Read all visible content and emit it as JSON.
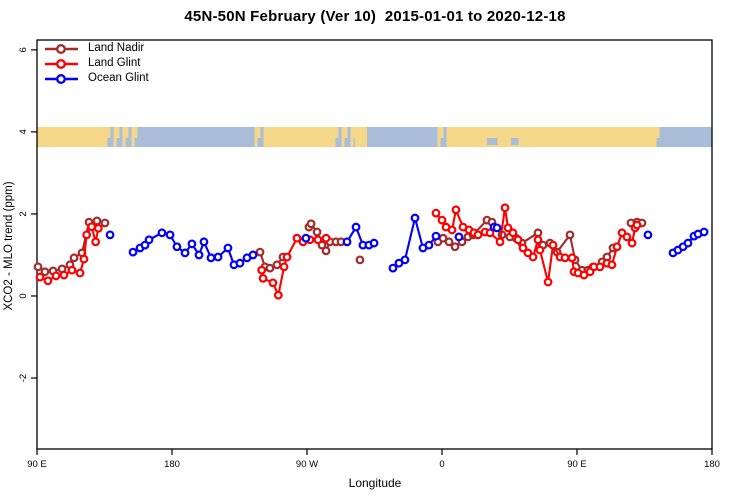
{
  "title": "45N-50N February (Ver 10)  2015-01-01 to 2020-12-18",
  "chart_data": {
    "type": "line",
    "title": "45N-50N February (Ver 10)  2015-01-01 to 2020-12-18",
    "xlabel": "Longitude",
    "ylabel": "XCO2 - MLO trend (ppm)",
    "marker": "open-circle",
    "grid": false,
    "legend_position": "top-left-inside",
    "x_axis": {
      "description": "longitude axis, degrees eastward from 90E wrapping past the dateline to 180",
      "range_deg": [
        0,
        450
      ],
      "ticks": [
        {
          "deg": 0,
          "label": "90 E"
        },
        {
          "deg": 90,
          "label": "180"
        },
        {
          "deg": 180,
          "label": "90 W"
        },
        {
          "deg": 270,
          "label": "0"
        },
        {
          "deg": 360,
          "label": "90 E"
        },
        {
          "deg": 450,
          "label": "180"
        }
      ]
    },
    "y_axis": {
      "range": [
        -3.73,
        6.24
      ],
      "ticks": [
        {
          "v": -2,
          "label": "-2"
        },
        {
          "v": 0,
          "label": "0"
        },
        {
          "v": 2,
          "label": "2"
        },
        {
          "v": 4,
          "label": "4"
        },
        {
          "v": 6,
          "label": "6"
        }
      ]
    },
    "gap_threshold_deg": 11,
    "series": [
      {
        "name": "Land Nadir",
        "color": "#A52A2A",
        "points": [
          [
            0.7,
            0.71
          ],
          [
            5.3,
            0.59
          ],
          [
            10.7,
            0.61
          ],
          [
            16.7,
            0.66
          ],
          [
            22.0,
            0.76
          ],
          [
            24.7,
            0.93
          ],
          [
            30.0,
            1.05
          ],
          [
            34.7,
            1.8
          ],
          [
            40.0,
            1.83
          ],
          [
            45.3,
            1.78
          ],
          [
            148.7,
            1.07
          ],
          [
            152.0,
            0.71
          ],
          [
            155.3,
            0.68
          ],
          [
            160.0,
            0.76
          ],
          [
            164.0,
            0.95
          ],
          [
            181.3,
            1.68
          ],
          [
            182.7,
            1.76
          ],
          [
            186.7,
            1.56
          ],
          [
            190.0,
            1.24
          ],
          [
            192.7,
            1.1
          ],
          [
            195.3,
            1.32
          ],
          [
            199.3,
            1.32
          ],
          [
            202.7,
            1.32
          ],
          [
            215.3,
            0.88
          ],
          [
            267.3,
            1.32
          ],
          [
            270.7,
            1.41
          ],
          [
            274.7,
            1.32
          ],
          [
            278.7,
            1.2
          ],
          [
            283.3,
            1.32
          ],
          [
            287.3,
            1.44
          ],
          [
            290.7,
            1.49
          ],
          [
            300.0,
            1.85
          ],
          [
            303.3,
            1.8
          ],
          [
            310.0,
            1.49
          ],
          [
            315.3,
            1.44
          ],
          [
            319.3,
            1.41
          ],
          [
            323.3,
            1.29
          ],
          [
            334.0,
            1.54
          ],
          [
            337.3,
            1.24
          ],
          [
            342.0,
            1.29
          ],
          [
            346.7,
            1.07
          ],
          [
            355.3,
            1.49
          ],
          [
            358.7,
            0.88
          ],
          [
            363.3,
            0.63
          ],
          [
            367.3,
            0.63
          ],
          [
            370.7,
            0.71
          ],
          [
            376.7,
            0.83
          ],
          [
            380.0,
            0.95
          ],
          [
            384.0,
            1.17
          ],
          [
            396.0,
            1.78
          ],
          [
            400.0,
            1.8
          ],
          [
            403.3,
            1.78
          ]
        ]
      },
      {
        "name": "Land Glint",
        "color": "#FF0000",
        "points": [
          [
            2.0,
            0.46
          ],
          [
            7.3,
            0.37
          ],
          [
            12.7,
            0.49
          ],
          [
            18.0,
            0.51
          ],
          [
            23.3,
            0.63
          ],
          [
            28.7,
            0.56
          ],
          [
            31.3,
            0.9
          ],
          [
            33.1,
            1.49
          ],
          [
            36.4,
            1.69
          ],
          [
            39.1,
            1.32
          ],
          [
            40.9,
            1.65
          ],
          [
            149.8,
            0.63
          ],
          [
            150.7,
            0.43
          ],
          [
            157.3,
            0.32
          ],
          [
            160.9,
            0.02
          ],
          [
            164.7,
            0.71
          ],
          [
            166.7,
            0.95
          ],
          [
            173.3,
            1.41
          ],
          [
            177.3,
            1.32
          ],
          [
            182.0,
            1.37
          ],
          [
            187.3,
            1.37
          ],
          [
            192.7,
            1.41
          ],
          [
            266.0,
            2.02
          ],
          [
            270.0,
            1.85
          ],
          [
            272.7,
            1.68
          ],
          [
            276.7,
            1.61
          ],
          [
            279.3,
            2.1
          ],
          [
            284.0,
            1.68
          ],
          [
            288.0,
            1.61
          ],
          [
            291.3,
            1.54
          ],
          [
            294.0,
            1.49
          ],
          [
            298.7,
            1.56
          ],
          [
            302.0,
            1.54
          ],
          [
            308.7,
            1.32
          ],
          [
            312.0,
            2.15
          ],
          [
            314.0,
            1.66
          ],
          [
            317.3,
            1.54
          ],
          [
            320.7,
            1.37
          ],
          [
            324.0,
            1.17
          ],
          [
            327.3,
            1.05
          ],
          [
            330.7,
            0.95
          ],
          [
            334.0,
            1.37
          ],
          [
            335.3,
            1.12
          ],
          [
            340.7,
            0.34
          ],
          [
            344.0,
            1.24
          ],
          [
            348.7,
            0.95
          ],
          [
            352.0,
            0.93
          ],
          [
            356.7,
            0.93
          ],
          [
            358.0,
            0.59
          ],
          [
            360.7,
            0.56
          ],
          [
            364.7,
            0.51
          ],
          [
            368.7,
            0.59
          ],
          [
            371.3,
            0.71
          ],
          [
            375.3,
            0.71
          ],
          [
            380.0,
            0.8
          ],
          [
            383.3,
            0.76
          ],
          [
            386.7,
            1.2
          ],
          [
            390.0,
            1.54
          ],
          [
            393.3,
            1.44
          ],
          [
            396.7,
            1.29
          ],
          [
            398.7,
            1.66
          ],
          [
            400.0,
            1.73
          ]
        ]
      },
      {
        "name": "Ocean Glint",
        "color": "#0000FF",
        "points": [
          [
            48.7,
            1.49
          ],
          [
            64.0,
            1.07
          ],
          [
            68.7,
            1.17
          ],
          [
            72.0,
            1.24
          ],
          [
            74.7,
            1.37
          ],
          [
            83.3,
            1.54
          ],
          [
            88.7,
            1.49
          ],
          [
            93.3,
            1.2
          ],
          [
            98.7,
            1.05
          ],
          [
            103.3,
            1.27
          ],
          [
            108.0,
            1.0
          ],
          [
            111.3,
            1.32
          ],
          [
            116.0,
            0.93
          ],
          [
            120.7,
            0.95
          ],
          [
            127.3,
            1.17
          ],
          [
            131.3,
            0.76
          ],
          [
            135.3,
            0.8
          ],
          [
            140.0,
            0.93
          ],
          [
            144.0,
            1.0
          ],
          [
            179.3,
            1.41
          ],
          [
            206.7,
            1.32
          ],
          [
            212.7,
            1.68
          ],
          [
            217.3,
            1.24
          ],
          [
            221.3,
            1.24
          ],
          [
            224.7,
            1.29
          ],
          [
            237.3,
            0.68
          ],
          [
            241.3,
            0.8
          ],
          [
            245.3,
            0.88
          ],
          [
            252.0,
            1.9
          ],
          [
            257.3,
            1.17
          ],
          [
            261.3,
            1.24
          ],
          [
            266.0,
            1.46
          ],
          [
            281.3,
            1.44
          ],
          [
            304.7,
            1.68
          ],
          [
            306.7,
            1.66
          ],
          [
            407.3,
            1.49
          ],
          [
            424.0,
            1.05
          ],
          [
            427.3,
            1.12
          ],
          [
            430.7,
            1.2
          ],
          [
            434.0,
            1.29
          ],
          [
            438.0,
            1.46
          ],
          [
            440.7,
            1.51
          ],
          [
            444.7,
            1.56
          ]
        ]
      }
    ],
    "map_strip": {
      "v_top": 4.12,
      "v_bottom": 3.63,
      "land_color": "#F5D78A",
      "ocean_color": "#A9BDD9",
      "segments": [
        {
          "s": 0,
          "e": 45,
          "t": "land"
        },
        {
          "s": 45,
          "e": 67,
          "t": "mixed"
        },
        {
          "s": 67,
          "e": 145,
          "t": "ocean"
        },
        {
          "s": 145,
          "e": 152,
          "t": "mixed"
        },
        {
          "s": 152,
          "e": 197,
          "t": "land"
        },
        {
          "s": 197,
          "e": 212,
          "t": "mixed"
        },
        {
          "s": 212,
          "e": 220,
          "t": "land"
        },
        {
          "s": 220,
          "e": 267,
          "t": "ocean"
        },
        {
          "s": 267,
          "e": 274,
          "t": "mixed"
        },
        {
          "s": 274,
          "e": 411,
          "t": "land"
        },
        {
          "s": 300,
          "e": 307,
          "t": "speck"
        },
        {
          "s": 316,
          "e": 321,
          "t": "speck"
        },
        {
          "s": 411,
          "e": 417,
          "t": "mixed"
        },
        {
          "s": 417,
          "e": 450,
          "t": "ocean"
        }
      ]
    }
  },
  "legend": {
    "items": [
      {
        "label": "Land Nadir",
        "color": "#A52A2A"
      },
      {
        "label": "Land Glint",
        "color": "#FF0000"
      },
      {
        "label": "Ocean Glint",
        "color": "#0000FF"
      }
    ]
  }
}
